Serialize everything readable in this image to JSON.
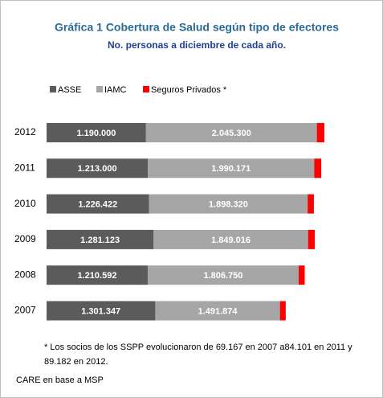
{
  "chart_data": {
    "type": "stacked-bar-horizontal",
    "title": "Gráfica 1    Cobertura de Salud según tipo de efectores",
    "subtitle": "No. personas a diciembre de cada año.",
    "categories": [
      "2012",
      "2011",
      "2010",
      "2009",
      "2008",
      "2007"
    ],
    "series": [
      {
        "name": "ASSE",
        "color": "#5b5b5b",
        "values": [
          1190000,
          1213000,
          1226422,
          1281123,
          1210592,
          1301347
        ],
        "value_labels": [
          "1.190.000",
          "1.213.000",
          "1.226.422",
          "1.281.123",
          "1.210.592",
          "1.301.347"
        ]
      },
      {
        "name": "IAMC",
        "color": "#a6a6a6",
        "values": [
          2045300,
          1990171,
          1898320,
          1849016,
          1806750,
          1491874
        ],
        "value_labels": [
          "2.045.300",
          "1.990.171",
          "1.898.320",
          "1.849.016",
          "1.806.750",
          "1.491.874"
        ]
      },
      {
        "name": "Seguros Privados *",
        "color": "#ff0000",
        "values": [
          89182,
          84101,
          75000,
          80000,
          72000,
          69167
        ]
      }
    ],
    "xlim": [
      0,
      3700000
    ],
    "note": [
      "* Los socios de los SSPP evolucionaron de 69.167 en 2007 a84.101 en 2011 y",
      "89.182 en 2012."
    ],
    "source": "CARE en  base  a MSP"
  }
}
